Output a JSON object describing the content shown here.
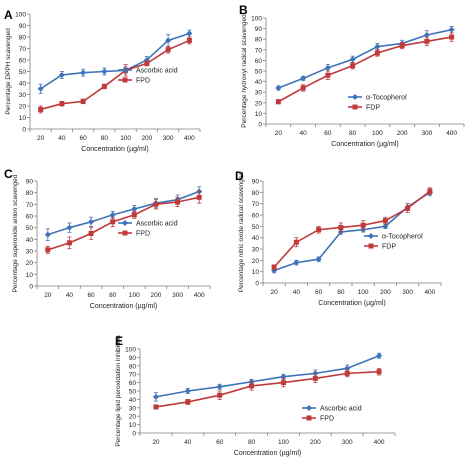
{
  "colors": {
    "blue": "#3f73b8",
    "red": "#c0393b",
    "axis": "#808080",
    "text": "#222222"
  },
  "chart_data": [
    {
      "panel": "A",
      "type": "line",
      "categories": [
        "20",
        "40",
        "60",
        "80",
        "100",
        "200",
        "300",
        "400"
      ],
      "ylabel": "Percentage DPPH scavenged",
      "xlabel": "Concentration (µg/ml)",
      "ylim": [
        0,
        100
      ],
      "yticks": [
        0,
        10,
        20,
        30,
        40,
        50,
        60,
        70,
        80,
        90,
        100
      ],
      "grid": false,
      "legend": "middle-right",
      "series": [
        {
          "name": "Ascorbic acid",
          "color": "blue",
          "marker": "diamond",
          "values": [
            35,
            47,
            49,
            50,
            51,
            60,
            77,
            83
          ],
          "errors": [
            4,
            3,
            3,
            3,
            3,
            3,
            5,
            3
          ]
        },
        {
          "name": "FPD",
          "color": "red",
          "marker": "square",
          "values": [
            17,
            22,
            24,
            37,
            51,
            57,
            69,
            77
          ],
          "errors": [
            3,
            2,
            2,
            2,
            5,
            2,
            3,
            3
          ]
        }
      ]
    },
    {
      "panel": "B",
      "type": "line",
      "categories": [
        "20",
        "40",
        "60",
        "80",
        "100",
        "200",
        "300",
        "400"
      ],
      "ylabel": "Percentage hydroxyl radical scavenged",
      "xlabel": "Concentration (µg/ml)",
      "ylim": [
        0,
        100
      ],
      "yticks": [
        0,
        10,
        20,
        30,
        40,
        50,
        60,
        70,
        80,
        90,
        100
      ],
      "grid": false,
      "legend": "bottom-right",
      "series": [
        {
          "name": "α-Tocopherol",
          "color": "blue",
          "marker": "diamond",
          "values": [
            34,
            43,
            53,
            61,
            73,
            76,
            84,
            89
          ],
          "errors": [
            2,
            2,
            3,
            3,
            3,
            3,
            4,
            3
          ]
        },
        {
          "name": "FDP",
          "color": "red",
          "marker": "square",
          "values": [
            21,
            34,
            46,
            55,
            67,
            74,
            78,
            82
          ],
          "errors": [
            2,
            3,
            4,
            3,
            3,
            3,
            4,
            4
          ]
        }
      ]
    },
    {
      "panel": "C",
      "type": "line",
      "categories": [
        "20",
        "40",
        "60",
        "80",
        "100",
        "200",
        "300",
        "400"
      ],
      "ylabel": "Percentage superoxide anion scavenged",
      "xlabel": "Concentration (µg/ml)",
      "ylim": [
        0,
        90
      ],
      "yticks": [
        0,
        10,
        20,
        30,
        40,
        50,
        60,
        70,
        80,
        90
      ],
      "grid": false,
      "legend": "middle-right",
      "series": [
        {
          "name": "Ascorbic acid",
          "color": "blue",
          "marker": "diamond",
          "values": [
            44,
            50,
            55,
            61,
            66,
            71,
            74,
            81
          ],
          "errors": [
            5,
            4,
            4,
            3,
            3,
            4,
            4,
            4
          ]
        },
        {
          "name": "FPD",
          "color": "red",
          "marker": "square",
          "values": [
            31,
            37,
            45,
            55,
            61,
            70,
            72,
            76
          ],
          "errors": [
            3,
            5,
            5,
            4,
            3,
            4,
            4,
            5
          ]
        }
      ]
    },
    {
      "panel": "D",
      "type": "line",
      "categories": [
        "20",
        "40",
        "60",
        "80",
        "100",
        "200",
        "300",
        "400"
      ],
      "ylabel": "Percentage nitric oxide radical scavenged",
      "xlabel": "Concentration (µg/ml)",
      "ylim": [
        0,
        90
      ],
      "yticks": [
        0,
        10,
        20,
        30,
        40,
        50,
        60,
        70,
        80,
        90
      ],
      "grid": false,
      "legend": "middle-right",
      "series": [
        {
          "name": "α-Tocopherol",
          "color": "blue",
          "marker": "diamond",
          "values": [
            11,
            18,
            21,
            45,
            47,
            50,
            67,
            80
          ],
          "errors": [
            2,
            2,
            2,
            2,
            2,
            2,
            3,
            3
          ]
        },
        {
          "name": "FDP",
          "color": "red",
          "marker": "square",
          "values": [
            14,
            36,
            47,
            49,
            51,
            55,
            66,
            81
          ],
          "errors": [
            2,
            4,
            3,
            4,
            4,
            3,
            4,
            3
          ]
        }
      ]
    },
    {
      "panel": "E",
      "type": "line",
      "categories": [
        "20",
        "40",
        "60",
        "80",
        "100",
        "200",
        "300",
        "400"
      ],
      "ylabel": "Percentage lipid peroxidation inhibition",
      "xlabel": "Concentration (µg/ml)",
      "ylim": [
        0,
        100
      ],
      "yticks": [
        0,
        10,
        20,
        30,
        40,
        50,
        60,
        70,
        80,
        90,
        100
      ],
      "grid": false,
      "legend": "bottom-right",
      "series": [
        {
          "name": "Ascorbic acid",
          "color": "blue",
          "marker": "diamond",
          "values": [
            43,
            50,
            55,
            61,
            67,
            71,
            77,
            92
          ],
          "errors": [
            5,
            3,
            3,
            3,
            3,
            4,
            4,
            3
          ]
        },
        {
          "name": "FPD",
          "color": "red",
          "marker": "square",
          "values": [
            31,
            37,
            45,
            56,
            60,
            65,
            71,
            73
          ],
          "errors": [
            2,
            3,
            5,
            5,
            5,
            5,
            4,
            4
          ]
        }
      ]
    }
  ]
}
